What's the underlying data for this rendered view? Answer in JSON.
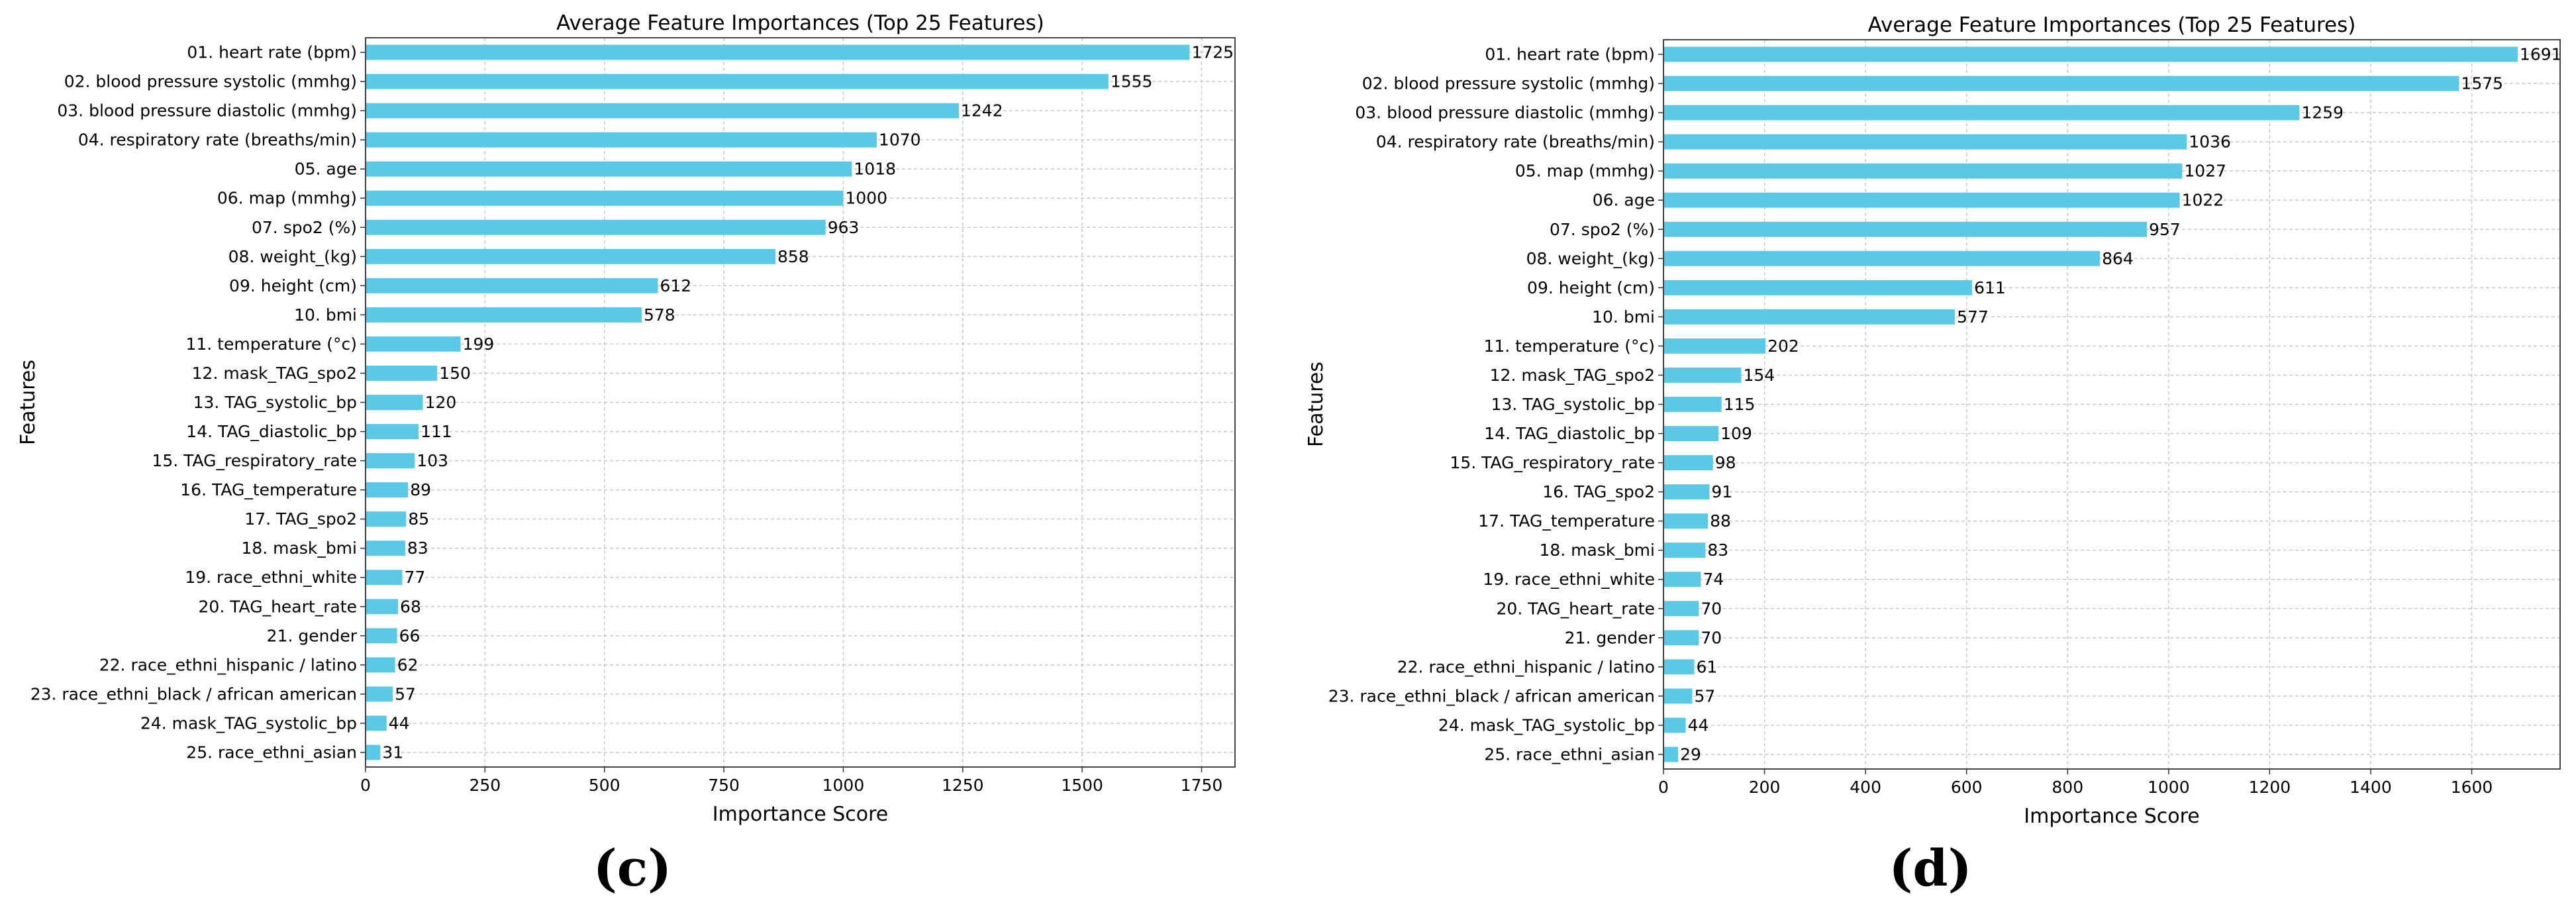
{
  "panels": [
    {
      "label": "(c)",
      "chart_data": {
        "type": "bar",
        "orientation": "horizontal",
        "title": "Average Feature Importances (Top 25 Features)",
        "xlabel": "Importance Score",
        "ylabel": "Features",
        "xlim": [
          0,
          1820
        ],
        "xticks": [
          0,
          250,
          500,
          750,
          1000,
          1250,
          1500,
          1750
        ],
        "grid": true,
        "bar_color": "#5bc8e6",
        "categories": [
          "01. heart rate (bpm)",
          "02. blood pressure systolic (mmhg)",
          "03. blood pressure diastolic (mmhg)",
          "04. respiratory rate (breaths/min)",
          "05. age",
          "06. map (mmhg)",
          "07. spo2 (%)",
          "08. weight_(kg)",
          "09. height (cm)",
          "10. bmi",
          "11. temperature (°c)",
          "12. mask_TAG_spo2",
          "13. TAG_systolic_bp",
          "14. TAG_diastolic_bp",
          "15. TAG_respiratory_rate",
          "16. TAG_temperature",
          "17. TAG_spo2",
          "18. mask_bmi",
          "19. race_ethni_white",
          "20. TAG_heart_rate",
          "21. gender",
          "22. race_ethni_hispanic / latino",
          "23. race_ethni_black / african american",
          "24. mask_TAG_systolic_bp",
          "25. race_ethni_asian"
        ],
        "values": [
          1725,
          1555,
          1242,
          1070,
          1018,
          1000,
          963,
          858,
          612,
          578,
          199,
          150,
          120,
          111,
          103,
          89,
          85,
          83,
          77,
          68,
          66,
          62,
          57,
          44,
          31
        ]
      }
    },
    {
      "label": "(d)",
      "chart_data": {
        "type": "bar",
        "orientation": "horizontal",
        "title": "Average Feature Importances (Top 25 Features)",
        "xlabel": "Importance Score",
        "ylabel": "Features",
        "xlim": [
          0,
          1775
        ],
        "xticks": [
          0,
          200,
          400,
          600,
          800,
          1000,
          1200,
          1400,
          1600
        ],
        "grid": true,
        "bar_color": "#5bc8e6",
        "categories": [
          "01. heart rate (bpm)",
          "02. blood pressure systolic (mmhg)",
          "03. blood pressure diastolic (mmhg)",
          "04. respiratory rate (breaths/min)",
          "05. map (mmhg)",
          "06. age",
          "07. spo2 (%)",
          "08. weight_(kg)",
          "09. height (cm)",
          "10. bmi",
          "11. temperature (°c)",
          "12. mask_TAG_spo2",
          "13. TAG_systolic_bp",
          "14. TAG_diastolic_bp",
          "15. TAG_respiratory_rate",
          "16. TAG_spo2",
          "17. TAG_temperature",
          "18. mask_bmi",
          "19. race_ethni_white",
          "20. TAG_heart_rate",
          "21. gender",
          "22. race_ethni_hispanic / latino",
          "23. race_ethni_black / african american",
          "24. mask_TAG_systolic_bp",
          "25. race_ethni_asian"
        ],
        "values": [
          1691,
          1575,
          1259,
          1036,
          1027,
          1022,
          957,
          864,
          611,
          577,
          202,
          154,
          115,
          109,
          98,
          91,
          88,
          83,
          74,
          70,
          70,
          61,
          57,
          44,
          29
        ]
      }
    }
  ]
}
